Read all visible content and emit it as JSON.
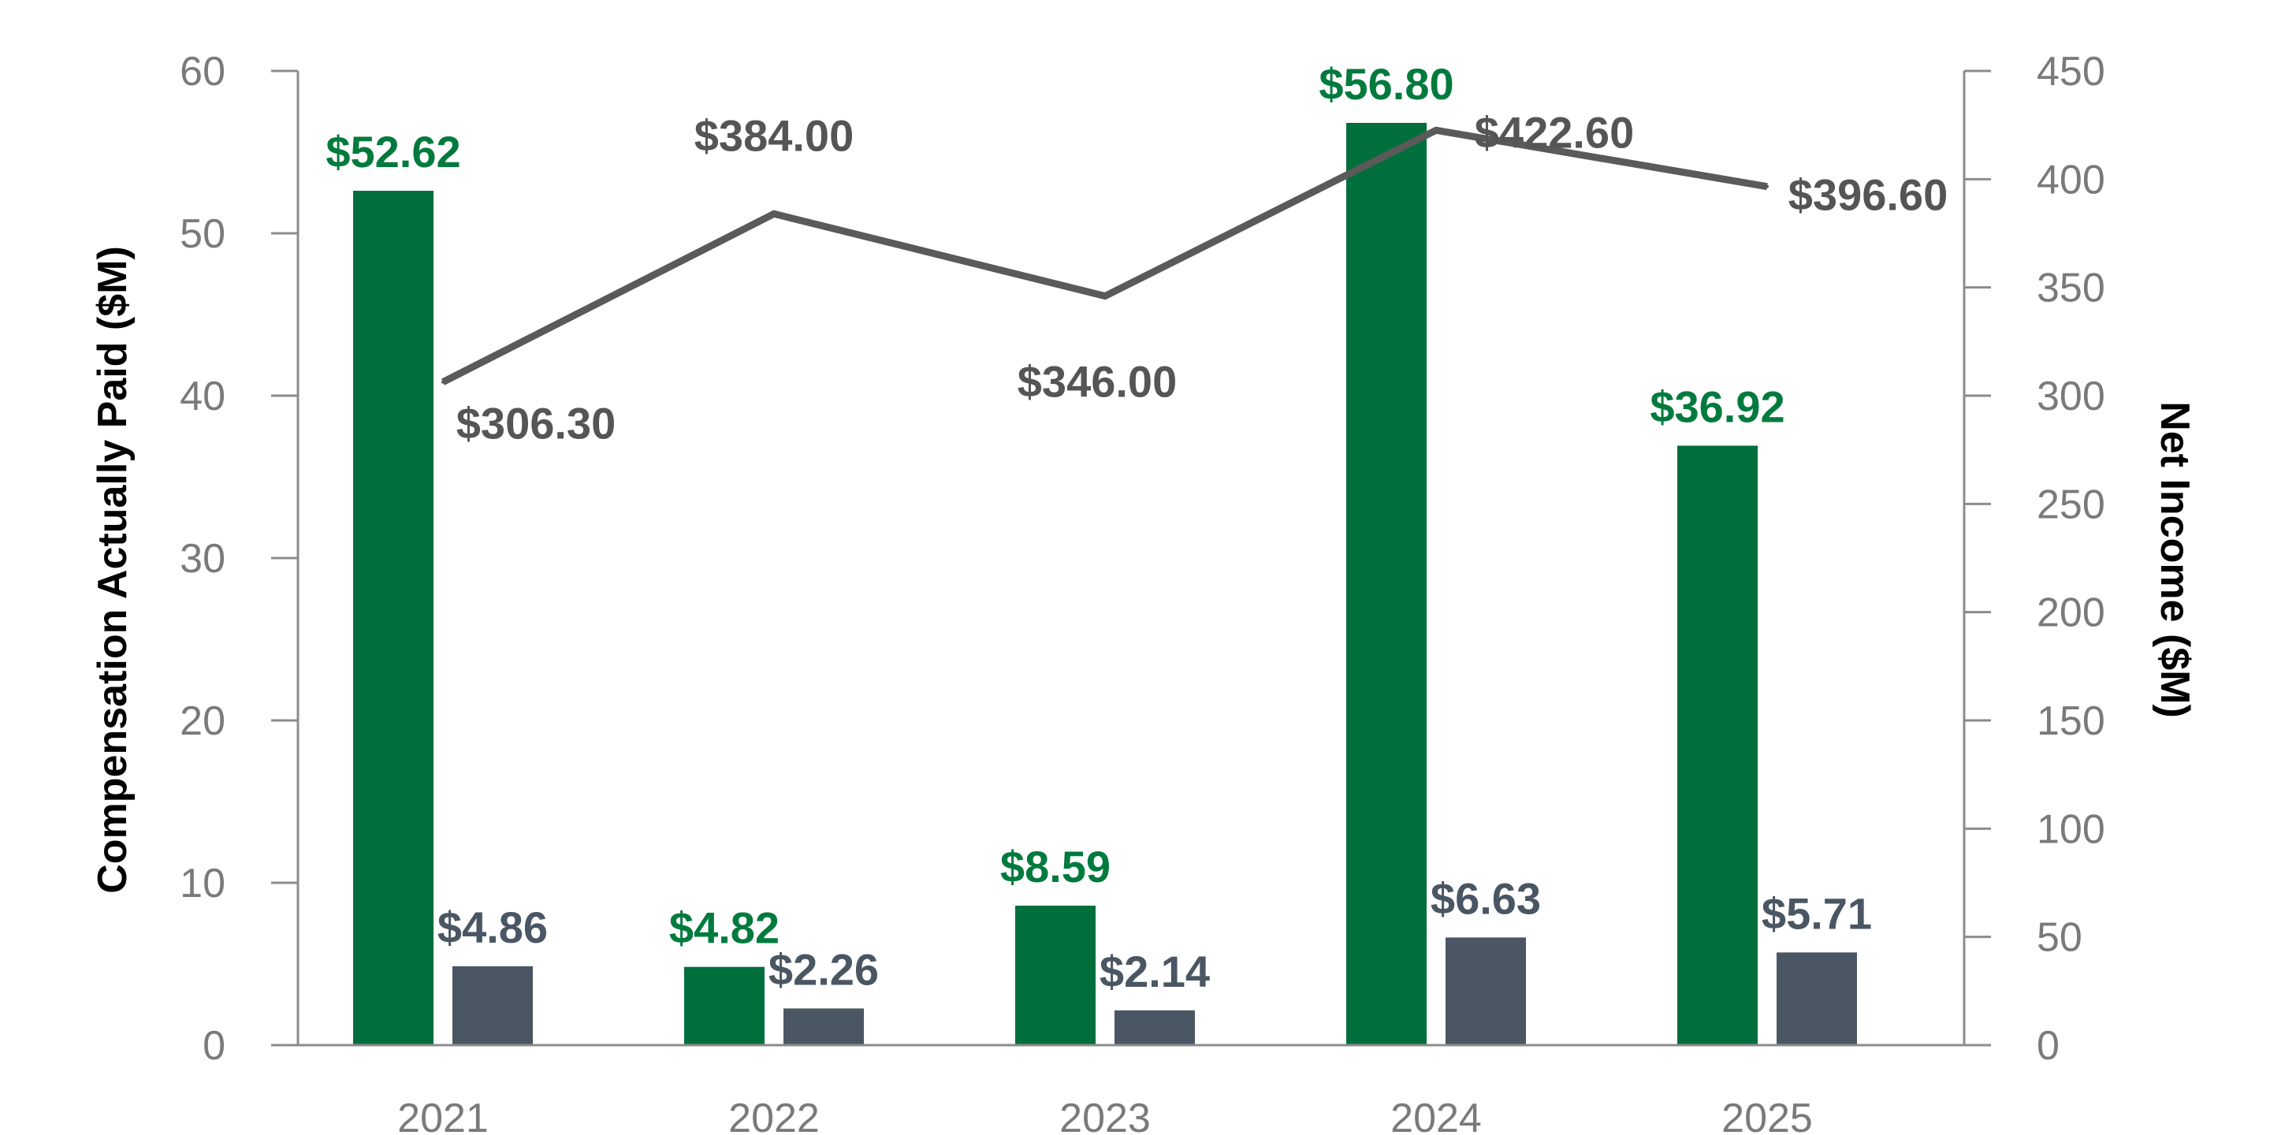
{
  "chart_data": {
    "type": "bar",
    "categories": [
      "2021",
      "2022",
      "2023",
      "2024",
      "2025"
    ],
    "series": [
      {
        "kind": "bar",
        "axis": "left",
        "color": "#006f3c",
        "label_color": "#007a3d",
        "values": [
          52.62,
          4.82,
          8.59,
          56.8,
          36.92
        ],
        "labels": [
          "$52.62",
          "$4.82",
          "$8.59",
          "$56.80",
          "$36.92"
        ]
      },
      {
        "kind": "bar",
        "axis": "left",
        "color": "#4a5663",
        "label_color": "#4a5663",
        "values": [
          4.86,
          2.26,
          2.14,
          6.63,
          5.71
        ],
        "labels": [
          "$4.86",
          "$2.26",
          "$2.14",
          "$6.63",
          "$5.71"
        ]
      },
      {
        "kind": "line",
        "axis": "right",
        "color": "#5a5a5a",
        "values": [
          306.3,
          384.0,
          346.0,
          422.6,
          396.6
        ],
        "labels": [
          "$306.30",
          "$384.00",
          "$346.00",
          "$422.60",
          "$396.60"
        ]
      }
    ],
    "ylabel": "Compensation Actually Paid ($M)",
    "y2label": "Net Income ($M)",
    "ylim": [
      0,
      60
    ],
    "y2lim": [
      0,
      450
    ],
    "yticks": [
      "0",
      "10",
      "20",
      "30",
      "40",
      "50",
      "60"
    ],
    "y2ticks": [
      "0",
      "50",
      "100",
      "150",
      "200",
      "250",
      "300",
      "350",
      "400",
      "450"
    ],
    "grid": false,
    "legend": "none"
  }
}
